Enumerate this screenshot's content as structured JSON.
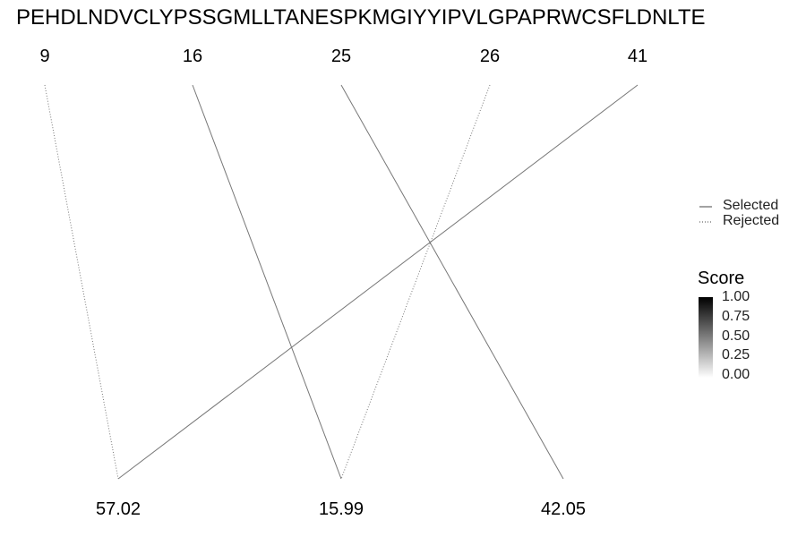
{
  "sequence": "PEHDLNDVCLYPSSGMLLTANESPKMGIYYIPVLGPAPRWCSFLDNLTE",
  "chart_data": {
    "type": "bipartite-line",
    "top_labels": [
      "9",
      "16",
      "25",
      "26",
      "41"
    ],
    "bottom_labels": [
      "57.02",
      "15.99",
      "42.05"
    ],
    "links": [
      {
        "from": "9",
        "to": "57.02",
        "status": "Rejected"
      },
      {
        "from": "16",
        "to": "15.99",
        "status": "Selected"
      },
      {
        "from": "25",
        "to": "42.05",
        "status": "Selected"
      },
      {
        "from": "26",
        "to": "15.99",
        "status": "Rejected"
      },
      {
        "from": "41",
        "to": "57.02",
        "status": "Selected"
      }
    ],
    "legend": {
      "line_types": [
        {
          "label": "Selected",
          "style": "solid"
        },
        {
          "label": "Rejected",
          "style": "dotted"
        }
      ],
      "score": {
        "title": "Score",
        "ticks": [
          "1.00",
          "0.75",
          "0.50",
          "0.25",
          "0.00"
        ],
        "range": [
          0,
          1
        ],
        "color_high": "#000000",
        "color_low": "#ffffff"
      }
    },
    "line_color": "#777777"
  }
}
